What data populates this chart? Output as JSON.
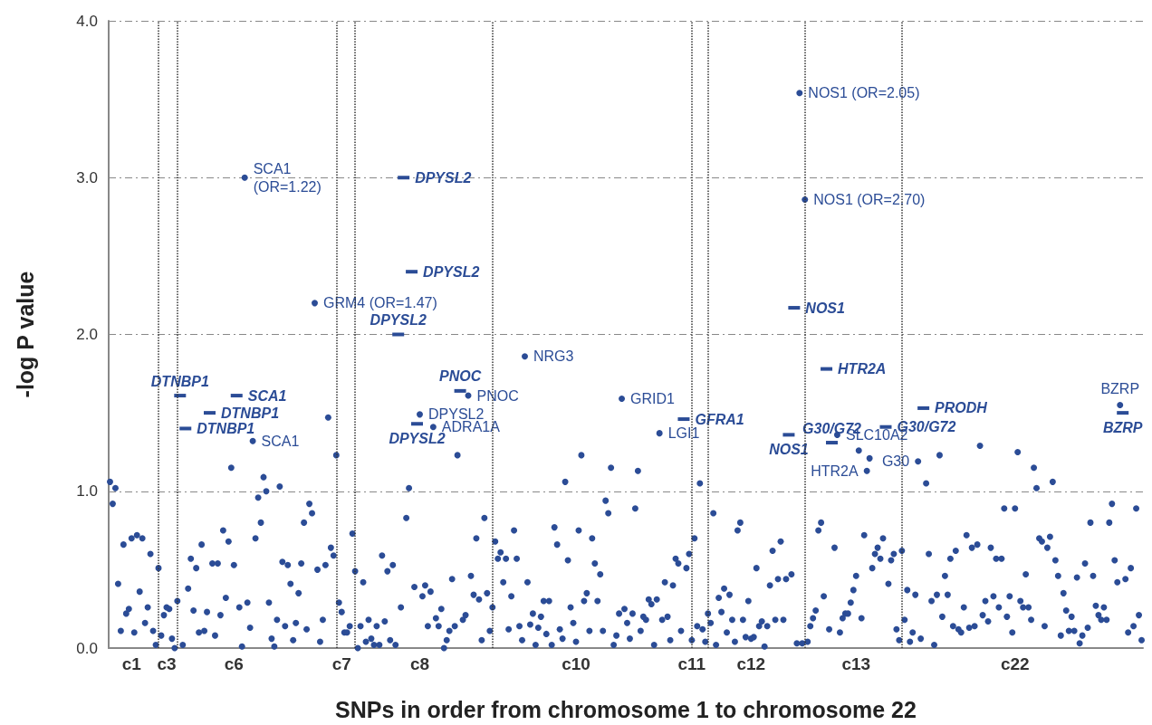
{
  "chart_data": {
    "type": "scatter",
    "xlabel": "SNPs in order from chromosome 1 to chromosome 22",
    "ylabel": "-log P value",
    "ylim": [
      0,
      4
    ],
    "yticks": [
      {
        "value": 0,
        "label": "0.0"
      },
      {
        "value": 1,
        "label": "1.0"
      },
      {
        "value": 2,
        "label": "2.0"
      },
      {
        "value": 3,
        "label": "3.0"
      },
      {
        "value": 4,
        "label": "4.0"
      }
    ],
    "grid": "y",
    "categories": [
      null,
      null,
      null,
      null,
      null,
      null,
      null,
      null,
      "c1",
      null,
      null,
      null,
      null,
      null,
      null,
      null,
      null,
      null,
      null,
      null,
      null,
      "c3",
      null,
      null,
      null,
      null,
      null,
      null,
      null,
      null,
      null,
      null,
      null,
      null,
      null,
      null,
      null,
      null,
      null,
      null,
      null,
      null,
      null,
      null,
      null,
      null,
      "c6",
      null,
      null,
      null,
      null,
      null,
      null,
      null,
      null,
      null,
      null,
      null,
      null,
      null,
      null,
      null,
      null,
      null,
      null,
      null,
      null,
      null,
      null,
      null,
      null,
      null,
      null,
      null,
      null,
      null,
      null,
      null,
      null,
      null,
      null,
      null,
      null,
      null,
      null,
      null,
      "c7",
      null,
      null,
      null,
      null,
      null,
      null,
      null,
      null,
      null,
      null,
      null,
      null,
      null,
      null,
      null,
      null,
      null,
      null,
      null,
      null,
      null,
      null,
      null,
      null,
      null,
      null,
      null,
      null,
      "c8",
      null,
      null,
      null,
      null,
      null,
      null,
      null,
      null,
      null,
      null,
      null,
      null,
      null,
      null,
      null,
      null,
      null,
      null,
      null,
      null,
      null,
      null,
      null,
      null,
      null,
      null,
      null,
      null,
      null,
      null,
      null,
      null,
      null,
      null,
      null,
      null,
      null,
      null,
      null,
      null,
      null,
      null,
      null,
      null,
      null,
      null,
      null,
      null,
      null,
      null,
      null,
      null,
      null,
      null,
      null,
      null,
      null,
      "c10",
      null,
      null,
      null,
      null,
      null,
      null,
      null,
      null,
      null,
      null,
      null,
      null,
      null,
      null,
      null,
      null,
      null,
      null,
      null,
      null,
      null,
      null,
      null,
      null,
      null,
      null,
      null,
      null,
      null,
      null,
      null,
      null,
      null,
      null,
      null,
      null,
      null,
      null,
      null,
      null,
      null,
      null,
      "c11",
      null,
      null,
      null,
      null,
      null,
      null,
      null,
      null,
      null,
      null,
      null,
      null,
      null,
      null,
      null,
      null,
      null,
      null,
      null,
      null,
      null,
      "c12",
      null,
      null,
      null,
      null,
      null,
      null,
      null,
      null,
      null,
      null,
      null,
      null,
      null,
      null,
      null,
      null,
      null,
      null,
      null,
      null,
      null,
      null,
      null,
      null,
      null,
      null,
      null,
      null,
      null,
      null,
      null,
      null,
      null,
      null,
      null,
      null,
      null,
      null,
      "c13",
      null,
      null,
      null,
      null,
      null,
      null,
      null,
      null,
      null,
      null,
      null,
      null,
      null,
      null,
      null,
      null,
      null,
      null,
      null,
      null,
      null,
      null,
      null,
      null,
      null,
      null,
      null,
      null,
      null,
      null,
      null,
      null,
      null,
      null,
      null,
      null,
      null,
      null,
      null,
      null,
      null,
      null,
      null,
      null,
      null,
      null,
      null,
      null,
      null,
      null,
      null,
      null,
      null,
      null,
      null,
      null,
      null,
      null,
      "c22",
      null,
      null,
      null,
      null,
      null,
      null,
      null,
      null,
      null,
      null,
      null,
      null,
      null,
      null,
      null,
      null,
      null,
      null,
      null,
      null,
      null,
      null,
      null,
      null,
      null,
      null,
      null,
      null,
      null,
      null,
      null,
      null,
      null,
      null,
      null,
      null,
      null,
      null,
      null,
      null,
      null,
      null,
      null,
      null,
      null,
      null,
      null
    ],
    "series": [
      {
        "color": "#2b4c96",
        "marker": "circle",
        "values": [
          1.06,
          0.92,
          1.02,
          0.41,
          0.11,
          0.66,
          0.22,
          0.25,
          0.7,
          0.1,
          0.72,
          0.36,
          0.7,
          0.16,
          0.26,
          0.6,
          0.11,
          0.02,
          0.51,
          0.08,
          0.21,
          0.26,
          0.25,
          0.06,
          0.0,
          0.3,
          null,
          0.02,
          null,
          0.38,
          0.57,
          0.24,
          0.51,
          0.1,
          0.66,
          0.11,
          0.23,
          null,
          0.54,
          0.08,
          0.54,
          0.21,
          0.75,
          0.32,
          0.68,
          1.15,
          0.53,
          null,
          0.26,
          0.01,
          3.0,
          0.29,
          0.13,
          1.32,
          0.7,
          0.96,
          0.8,
          1.09,
          1.0,
          0.29,
          0.06,
          0.01,
          0.18,
          1.03,
          0.55,
          0.14,
          0.53,
          0.41,
          0.05,
          0.16,
          0.35,
          0.54,
          0.8,
          0.12,
          0.92,
          0.86,
          2.2,
          0.5,
          0.04,
          0.18,
          0.53,
          1.47,
          0.64,
          0.59,
          1.23,
          0.29,
          0.23,
          0.1,
          0.1,
          0.14,
          0.73,
          0.49,
          0.0,
          0.14,
          0.42,
          0.04,
          0.18,
          0.06,
          0.02,
          0.14,
          0.02,
          0.59,
          0.17,
          0.49,
          0.05,
          0.53,
          0.02,
          null,
          0.26,
          null,
          0.83,
          1.02,
          null,
          0.39,
          null,
          1.49,
          0.33,
          0.4,
          0.14,
          0.36,
          1.41,
          0.19,
          0.14,
          0.25,
          0.0,
          0.05,
          0.11,
          0.44,
          0.14,
          1.23,
          null,
          0.18,
          0.21,
          1.61,
          0.46,
          0.34,
          0.7,
          0.31,
          0.05,
          0.83,
          0.35,
          0.11,
          0.26,
          0.68,
          0.57,
          0.61,
          0.42,
          0.57,
          0.12,
          0.33,
          0.75,
          0.57,
          0.14,
          0.05,
          1.86,
          0.42,
          0.15,
          0.22,
          0.02,
          0.13,
          0.2,
          0.3,
          0.09,
          0.3,
          0.02,
          0.77,
          0.66,
          0.12,
          0.06,
          1.06,
          0.56,
          0.26,
          0.16,
          0.04,
          0.75,
          1.23,
          0.3,
          0.35,
          0.11,
          0.7,
          0.54,
          0.3,
          0.47,
          0.11,
          0.94,
          0.86,
          1.15,
          0.02,
          0.08,
          0.22,
          1.59,
          0.25,
          0.16,
          0.06,
          0.22,
          0.89,
          1.13,
          0.11,
          0.2,
          0.18,
          0.31,
          0.28,
          0.02,
          0.31,
          1.37,
          0.18,
          0.42,
          0.2,
          0.05,
          0.4,
          0.57,
          0.54,
          0.11,
          null,
          0.51,
          0.6,
          0.05,
          0.7,
          0.14,
          1.05,
          0.12,
          0.04,
          0.22,
          0.16,
          0.86,
          0.02,
          0.32,
          0.23,
          0.38,
          0.1,
          0.34,
          0.18,
          0.04,
          0.75,
          0.8,
          0.18,
          0.07,
          0.3,
          0.06,
          0.07,
          0.51,
          0.14,
          0.17,
          0.01,
          0.14,
          0.4,
          0.62,
          0.18,
          0.44,
          0.68,
          0.18,
          0.44,
          null,
          0.47,
          null,
          0.03,
          3.54,
          0.03,
          2.86,
          0.04,
          0.14,
          0.19,
          0.24,
          0.75,
          0.8,
          0.33,
          null,
          0.12,
          null,
          0.64,
          1.36,
          0.1,
          0.19,
          0.22,
          0.22,
          0.29,
          0.37,
          0.46,
          1.26,
          0.19,
          0.72,
          1.13,
          1.21,
          0.51,
          0.6,
          0.64,
          0.57,
          0.7,
          null,
          0.41,
          0.56,
          0.6,
          0.12,
          0.05,
          0.62,
          0.18,
          0.37,
          0.04,
          0.1,
          0.34,
          1.19,
          0.06,
          null,
          1.05,
          0.6,
          0.3,
          0.02,
          0.34,
          1.23,
          0.2,
          0.46,
          0.34,
          0.57,
          0.14,
          0.62,
          0.12,
          0.1,
          0.26,
          0.72,
          0.13,
          0.64,
          0.14,
          0.66,
          1.29,
          0.21,
          0.3,
          0.17,
          0.64,
          0.33,
          0.57,
          0.26,
          0.57,
          0.89,
          0.2,
          0.33,
          0.1,
          0.89,
          1.25,
          0.3,
          0.26,
          0.47,
          0.26,
          0.18,
          1.15,
          1.02,
          0.7,
          0.68,
          0.14,
          0.64,
          0.71,
          1.06,
          0.56,
          0.46,
          0.08,
          0.35,
          0.24,
          0.11,
          0.2,
          0.11,
          0.45,
          0.03,
          0.08,
          0.54,
          0.13,
          0.8,
          0.46,
          0.27,
          0.21,
          0.18,
          0.26,
          0.18,
          0.8,
          0.92,
          0.56,
          0.42,
          1.55,
          null,
          0.44,
          0.1,
          0.51,
          0.14,
          0.89,
          0.21,
          0.05
        ],
        "value_labels": [
          null,
          null,
          null,
          null,
          null,
          null,
          null,
          null,
          null,
          null,
          null,
          null,
          null,
          null,
          null,
          null,
          null,
          null,
          null,
          null,
          null,
          null,
          null,
          null,
          null,
          null,
          null,
          null,
          null,
          null,
          null,
          null,
          null,
          null,
          null,
          null,
          null,
          null,
          null,
          null,
          null,
          null,
          null,
          null,
          null,
          null,
          null,
          null,
          null,
          null,
          "SCA1 (OR=1.22)",
          null,
          null,
          "SCA1",
          null,
          null,
          null,
          null,
          null,
          null,
          null,
          null,
          null,
          null,
          null,
          null,
          null,
          null,
          null,
          null,
          null,
          null,
          null,
          null,
          null,
          null,
          "GRM4 (OR=1.47)",
          null,
          null,
          null,
          null,
          null,
          null,
          null,
          null,
          null,
          null,
          null,
          null,
          null,
          null,
          null,
          null,
          null,
          null,
          null,
          null,
          null,
          null,
          null,
          null,
          null,
          null,
          null,
          null,
          null,
          null,
          null,
          null,
          null,
          null,
          null,
          null,
          null,
          null,
          "DPYSL2",
          null,
          null,
          null,
          null,
          "ADRA1A",
          null,
          null,
          null,
          null,
          null,
          null,
          null,
          null,
          null,
          null,
          null,
          null,
          "PNOC",
          null,
          null,
          null,
          null,
          null,
          null,
          null,
          null,
          null,
          null,
          null,
          null,
          null,
          null,
          null,
          null,
          null,
          null,
          null,
          null,
          "NRG3",
          null,
          null,
          null,
          null,
          null,
          null,
          null,
          null,
          null,
          null,
          null,
          null,
          null,
          null,
          null,
          null,
          null,
          null,
          null,
          null,
          null,
          null,
          null,
          null,
          null,
          null,
          null,
          null,
          null,
          null,
          null,
          null,
          null,
          null,
          null,
          "GRID1",
          null,
          null,
          null,
          null,
          null,
          null,
          null,
          null,
          null,
          null,
          null,
          null,
          null,
          "LGI1",
          null,
          null,
          null,
          null,
          null,
          null,
          null,
          null,
          null,
          null,
          null,
          null,
          null,
          null,
          null,
          null,
          null,
          null,
          null,
          null,
          null,
          null,
          null,
          null,
          null,
          null,
          null,
          null,
          null,
          null,
          null,
          null,
          null,
          null,
          null,
          null,
          null,
          null,
          null,
          null,
          null,
          null,
          null,
          null,
          null,
          null,
          null,
          null,
          null,
          null,
          null,
          "NOS1 (OR=2.05)",
          null,
          "NOS1 (OR=2.70)",
          null,
          null,
          null,
          null,
          null,
          null,
          null,
          null,
          null,
          null,
          null,
          "SLC10A2",
          null,
          null,
          null,
          null,
          null,
          null,
          null,
          null,
          null,
          null,
          "HTR2A",
          null,
          null,
          null,
          null,
          null,
          null,
          null,
          null,
          null,
          null,
          null,
          null,
          null,
          null,
          null,
          null,
          null,
          null,
          "G30",
          null,
          null,
          null,
          null,
          null,
          null,
          null,
          null,
          null,
          null,
          null,
          null,
          null,
          null,
          null,
          null,
          null,
          null,
          null,
          null,
          null,
          null,
          null,
          null,
          null,
          null,
          null,
          null,
          null,
          null,
          null,
          null,
          null,
          null,
          null,
          null,
          null,
          null,
          null,
          null,
          null,
          null,
          null,
          null,
          null,
          null,
          null,
          null,
          null,
          null,
          null,
          null,
          null,
          null,
          null,
          null,
          null,
          null,
          null,
          null,
          null,
          null,
          null,
          null,
          null,
          null,
          null,
          null,
          null,
          null,
          null,
          null,
          null,
          null,
          "BZRP",
          null,
          null,
          null,
          null,
          null,
          null,
          null,
          null
        ]
      },
      {
        "color": "#2b4c96",
        "marker": "square",
        "values": [
          null,
          null,
          null,
          null,
          null,
          null,
          null,
          null,
          null,
          null,
          null,
          null,
          null,
          null,
          null,
          null,
          null,
          null,
          null,
          null,
          null,
          null,
          null,
          null,
          null,
          null,
          1.61,
          null,
          1.4,
          null,
          null,
          null,
          null,
          null,
          null,
          null,
          null,
          1.5,
          null,
          null,
          null,
          null,
          null,
          null,
          null,
          null,
          null,
          1.61,
          null,
          null,
          null,
          null,
          null,
          null,
          null,
          null,
          null,
          null,
          null,
          null,
          null,
          null,
          null,
          null,
          null,
          null,
          null,
          null,
          null,
          null,
          null,
          null,
          null,
          null,
          null,
          null,
          null,
          null,
          null,
          null,
          null,
          null,
          null,
          null,
          null,
          null,
          null,
          null,
          null,
          null,
          null,
          null,
          null,
          null,
          null,
          null,
          null,
          null,
          null,
          null,
          null,
          null,
          null,
          null,
          null,
          null,
          null,
          2.0,
          null,
          3.0,
          null,
          null,
          2.4,
          null,
          1.43,
          null,
          null,
          null,
          null,
          null,
          null,
          null,
          null,
          null,
          null,
          null,
          null,
          null,
          null,
          null,
          1.64,
          null,
          null,
          null,
          null,
          null,
          null,
          null,
          null,
          null,
          null,
          null,
          null,
          null,
          null,
          null,
          null,
          null,
          null,
          null,
          null,
          null,
          null,
          null,
          null,
          null,
          null,
          null,
          null,
          null,
          null,
          null,
          null,
          null,
          null,
          null,
          null,
          null,
          null,
          null,
          null,
          null,
          null,
          null,
          null,
          null,
          null,
          null,
          null,
          null,
          null,
          null,
          null,
          null,
          null,
          null,
          null,
          null,
          null,
          null,
          null,
          null,
          null,
          null,
          null,
          null,
          null,
          null,
          null,
          null,
          null,
          null,
          null,
          null,
          null,
          null,
          null,
          null,
          null,
          null,
          null,
          null,
          null,
          1.46,
          null,
          null,
          null,
          null,
          null,
          null,
          null,
          null,
          null,
          null,
          null,
          null,
          null,
          null,
          null,
          null,
          null,
          null,
          null,
          null,
          null,
          null,
          null,
          null,
          null,
          null,
          null,
          null,
          null,
          null,
          null,
          null,
          null,
          null,
          null,
          null,
          null,
          null,
          1.36,
          null,
          2.17,
          null,
          null,
          null,
          null,
          null,
          null,
          null,
          null,
          null,
          null,
          null,
          1.78,
          null,
          1.31,
          null,
          null,
          null,
          null,
          null,
          null,
          null,
          null,
          null,
          null,
          null,
          null,
          null,
          null,
          null,
          null,
          null,
          null,
          null,
          1.41,
          null,
          null,
          null,
          null,
          null,
          null,
          null,
          null,
          null,
          null,
          null,
          null,
          null,
          1.53,
          null,
          null,
          null,
          null,
          null,
          null,
          null,
          null,
          null,
          null,
          null,
          null,
          null,
          null,
          null,
          null,
          null,
          null,
          null,
          null,
          null,
          null,
          null,
          null,
          null,
          null,
          null,
          null,
          null,
          null,
          null,
          null,
          null,
          null,
          null,
          null,
          null,
          null,
          null,
          null,
          null,
          null,
          null,
          null,
          null,
          null,
          null,
          null,
          null,
          null,
          null,
          null,
          null,
          null,
          null,
          null,
          null,
          null,
          null,
          null,
          null,
          null,
          null,
          null,
          null,
          null,
          null,
          null,
          null,
          null,
          null,
          null,
          null,
          1.5,
          null,
          null,
          null,
          null,
          null,
          null,
          null
        ],
        "value_labels": [
          null,
          null,
          null,
          null,
          null,
          null,
          null,
          null,
          null,
          null,
          null,
          null,
          null,
          null,
          null,
          null,
          null,
          null,
          null,
          null,
          null,
          null,
          null,
          null,
          null,
          null,
          "DTNBP1",
          null,
          "DTNBP1",
          null,
          null,
          null,
          null,
          null,
          null,
          null,
          null,
          "DTNBP1",
          null,
          null,
          null,
          null,
          null,
          null,
          null,
          null,
          null,
          "SCA1",
          null,
          null,
          null,
          null,
          null,
          null,
          null,
          null,
          null,
          null,
          null,
          null,
          null,
          null,
          null,
          null,
          null,
          null,
          null,
          null,
          null,
          null,
          null,
          null,
          null,
          null,
          null,
          null,
          null,
          null,
          null,
          null,
          null,
          null,
          null,
          null,
          null,
          null,
          null,
          null,
          null,
          null,
          null,
          null,
          null,
          null,
          null,
          null,
          null,
          null,
          null,
          null,
          null,
          null,
          null,
          null,
          null,
          null,
          null,
          "DPYSL2",
          null,
          "DPYSL2",
          null,
          null,
          "DPYSL2",
          null,
          "DPYSL2",
          null,
          null,
          null,
          null,
          null,
          null,
          null,
          null,
          null,
          null,
          null,
          null,
          null,
          null,
          null,
          "PNOC",
          null,
          null,
          null,
          null,
          null,
          null,
          null,
          null,
          null,
          null,
          null,
          null,
          null,
          null,
          null,
          null,
          null,
          null,
          null,
          null,
          null,
          null,
          null,
          null,
          null,
          null,
          null,
          null,
          null,
          null,
          null,
          null,
          null,
          null,
          null,
          null,
          null,
          null,
          null,
          null,
          null,
          null,
          null,
          null,
          null,
          null,
          null,
          null,
          null,
          null,
          null,
          null,
          null,
          null,
          null,
          null,
          null,
          null,
          null,
          null,
          null,
          null,
          null,
          null,
          null,
          null,
          null,
          null,
          null,
          null,
          null,
          null,
          null,
          null,
          null,
          null,
          null,
          null,
          null,
          null,
          null,
          null,
          "GFRA1",
          null,
          null,
          null,
          null,
          null,
          null,
          null,
          null,
          null,
          null,
          null,
          null,
          null,
          null,
          null,
          null,
          null,
          null,
          null,
          null,
          null,
          null,
          null,
          null,
          null,
          null,
          null,
          null,
          null,
          null,
          null,
          null,
          null,
          null,
          null,
          null,
          null,
          null,
          "NOS1",
          null,
          "NOS1",
          null,
          null,
          null,
          null,
          null,
          null,
          null,
          null,
          null,
          null,
          null,
          "HTR2A",
          null,
          "G30/G72",
          null,
          null,
          null,
          null,
          null,
          null,
          null,
          null,
          null,
          null,
          null,
          null,
          null,
          null,
          null,
          null,
          null,
          null,
          null,
          "G30/G72",
          null,
          null,
          null,
          null,
          null,
          null,
          null,
          null,
          null,
          null,
          null,
          null,
          null,
          "PRODH",
          null,
          null,
          null,
          null,
          null,
          null,
          null,
          null,
          null,
          null,
          null,
          null,
          null,
          null,
          null,
          null,
          null,
          null,
          null,
          null,
          null,
          null,
          null,
          null,
          null,
          null,
          null,
          null,
          null,
          null,
          null,
          null,
          null,
          null,
          null,
          null,
          null,
          null,
          null,
          null,
          null,
          null,
          null,
          null,
          null,
          null,
          null,
          null,
          null,
          null,
          null,
          null,
          null,
          null,
          null,
          null,
          null,
          null,
          null,
          null,
          null,
          null,
          null,
          null,
          null,
          null,
          null,
          null,
          null,
          null,
          null,
          null,
          null,
          "BZRP",
          null,
          null,
          null,
          null,
          null,
          null,
          null
        ]
      }
    ]
  }
}
